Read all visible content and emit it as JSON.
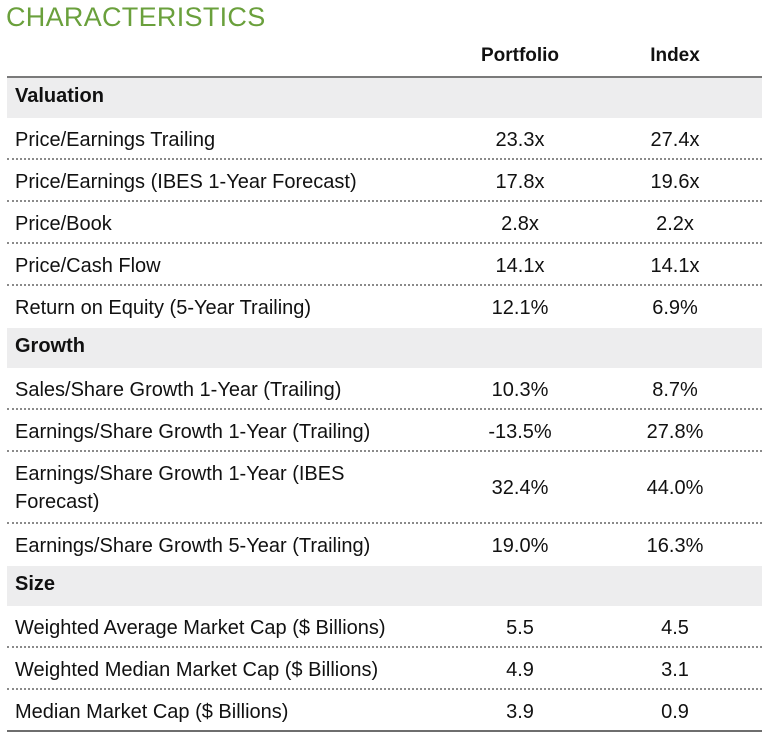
{
  "title": "CHARACTERISTICS",
  "columns": {
    "portfolio": "Portfolio",
    "index": "Index"
  },
  "sections": {
    "valuation": {
      "label": "Valuation",
      "rows": [
        {
          "label": "Price/Earnings Trailing",
          "portfolio": "23.3x",
          "index": "27.4x"
        },
        {
          "label": "Price/Earnings (IBES 1-Year Forecast)",
          "portfolio": "17.8x",
          "index": "19.6x"
        },
        {
          "label": "Price/Book",
          "portfolio": "2.8x",
          "index": "2.2x"
        },
        {
          "label": "Price/Cash Flow",
          "portfolio": "14.1x",
          "index": "14.1x"
        },
        {
          "label": "Return on Equity (5-Year Trailing)",
          "portfolio": "12.1%",
          "index": "6.9%"
        }
      ]
    },
    "growth": {
      "label": "Growth",
      "rows": [
        {
          "label": "Sales/Share Growth 1-Year (Trailing)",
          "portfolio": "10.3%",
          "index": "8.7%"
        },
        {
          "label": "Earnings/Share Growth 1-Year (Trailing)",
          "portfolio": "-13.5%",
          "index": "27.8%"
        },
        {
          "label": "Earnings/Share Growth 1-Year (IBES Forecast)",
          "portfolio": "32.4%",
          "index": "44.0%"
        },
        {
          "label": "Earnings/Share Growth 5-Year (Trailing)",
          "portfolio": "19.0%",
          "index": "16.3%"
        }
      ]
    },
    "size": {
      "label": "Size",
      "rows": [
        {
          "label": "Weighted Average Market Cap ($ Billions)",
          "portfolio": "5.5",
          "index": "4.5"
        },
        {
          "label": "Weighted Median Market Cap ($ Billions)",
          "portfolio": "4.9",
          "index": "3.1"
        },
        {
          "label": "Median Market Cap ($ Billions)",
          "portfolio": "3.9",
          "index": "0.9"
        }
      ]
    }
  }
}
